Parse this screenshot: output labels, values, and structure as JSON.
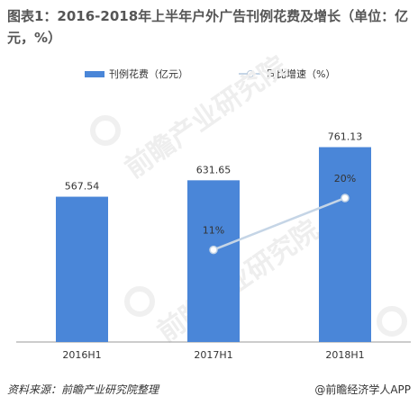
{
  "title": "图表1：2016-2018年上半年户外广告刊例花费及增长（单位：亿元，%）",
  "legend": {
    "bar_label": "刊例花费（亿元）",
    "line_label": "同比增速（%）"
  },
  "watermark": "前瞻产业研究院",
  "footer": {
    "source": "资料来源：前瞻产业研究院整理",
    "brand": "@前瞻经济学人APP"
  },
  "colors": {
    "bar": "#4a86d8",
    "line": "#c5d5e6",
    "axis": "#999999"
  },
  "chart_data": {
    "type": "bar",
    "categories": [
      "2016H1",
      "2017H1",
      "2018H1"
    ],
    "series": [
      {
        "name": "刊例花费（亿元）",
        "type": "bar",
        "values": [
          567.54,
          631.65,
          761.13
        ],
        "labels": [
          "567.54",
          "631.65",
          "761.13"
        ]
      },
      {
        "name": "同比增速（%）",
        "type": "line",
        "values": [
          null,
          11,
          20
        ],
        "labels": [
          "",
          "11%",
          "20%"
        ]
      }
    ],
    "ylim": [
      0,
      900
    ],
    "y2lim": [
      -5,
      35
    ],
    "legend_position": "top"
  }
}
